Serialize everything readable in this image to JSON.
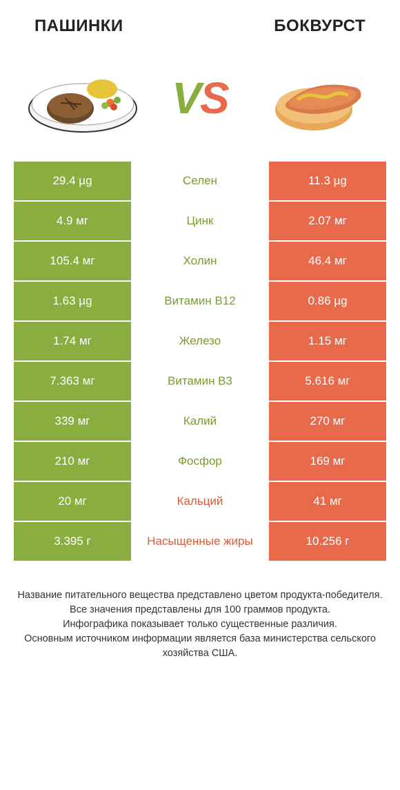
{
  "header": {
    "left_title": "ПАШИНКИ",
    "right_title": "БОКВУРСТ"
  },
  "vs": {
    "v": "V",
    "s": "S"
  },
  "colors": {
    "green": "#8aad3f",
    "orange": "#e86a4a"
  },
  "rows": [
    {
      "left": "29.4 µg",
      "name": "Селен",
      "right": "11.3 µg",
      "winner": "left"
    },
    {
      "left": "4.9 мг",
      "name": "Цинк",
      "right": "2.07 мг",
      "winner": "left"
    },
    {
      "left": "105.4 мг",
      "name": "Холин",
      "right": "46.4 мг",
      "winner": "left"
    },
    {
      "left": "1.63 µg",
      "name": "Витамин B12",
      "right": "0.86 µg",
      "winner": "left"
    },
    {
      "left": "1.74 мг",
      "name": "Железо",
      "right": "1.15 мг",
      "winner": "left"
    },
    {
      "left": "7.363 мг",
      "name": "Витамин B3",
      "right": "5.616 мг",
      "winner": "left"
    },
    {
      "left": "339 мг",
      "name": "Калий",
      "right": "270 мг",
      "winner": "left"
    },
    {
      "left": "210 мг",
      "name": "Фосфор",
      "right": "169 мг",
      "winner": "left"
    },
    {
      "left": "20 мг",
      "name": "Кальций",
      "right": "41 мг",
      "winner": "right"
    },
    {
      "left": "3.395 г",
      "name": "Насыщенные жиры",
      "right": "10.256 г",
      "winner": "right"
    }
  ],
  "footnote": "Название питательного вещества представлено цветом продукта-победителя.\nВсе значения представлены для 100 граммов продукта.\nИнфографика показывает только существенные различия.\nОсновным источником информации является база министерства сельского хозяйства США."
}
